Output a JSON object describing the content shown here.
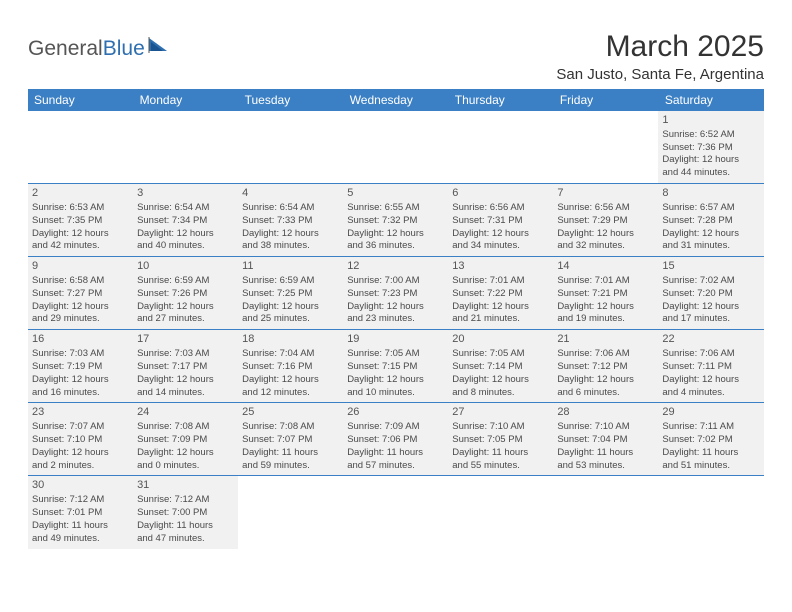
{
  "logo": {
    "text_part1": "General",
    "text_part2": "Blue"
  },
  "title": "March 2025",
  "location": "San Justo, Santa Fe, Argentina",
  "colors": {
    "header_bg": "#3b7fc4",
    "header_text": "#ffffff",
    "cell_filled_bg": "#f1f1f1",
    "border": "#3b7fc4",
    "text": "#4a4a4a"
  },
  "weekdays": [
    "Sunday",
    "Monday",
    "Tuesday",
    "Wednesday",
    "Thursday",
    "Friday",
    "Saturday"
  ],
  "weeks": [
    [
      null,
      null,
      null,
      null,
      null,
      null,
      {
        "day": "1",
        "sunrise": "Sunrise: 6:52 AM",
        "sunset": "Sunset: 7:36 PM",
        "day1": "Daylight: 12 hours",
        "day2": "and 44 minutes."
      }
    ],
    [
      {
        "day": "2",
        "sunrise": "Sunrise: 6:53 AM",
        "sunset": "Sunset: 7:35 PM",
        "day1": "Daylight: 12 hours",
        "day2": "and 42 minutes."
      },
      {
        "day": "3",
        "sunrise": "Sunrise: 6:54 AM",
        "sunset": "Sunset: 7:34 PM",
        "day1": "Daylight: 12 hours",
        "day2": "and 40 minutes."
      },
      {
        "day": "4",
        "sunrise": "Sunrise: 6:54 AM",
        "sunset": "Sunset: 7:33 PM",
        "day1": "Daylight: 12 hours",
        "day2": "and 38 minutes."
      },
      {
        "day": "5",
        "sunrise": "Sunrise: 6:55 AM",
        "sunset": "Sunset: 7:32 PM",
        "day1": "Daylight: 12 hours",
        "day2": "and 36 minutes."
      },
      {
        "day": "6",
        "sunrise": "Sunrise: 6:56 AM",
        "sunset": "Sunset: 7:31 PM",
        "day1": "Daylight: 12 hours",
        "day2": "and 34 minutes."
      },
      {
        "day": "7",
        "sunrise": "Sunrise: 6:56 AM",
        "sunset": "Sunset: 7:29 PM",
        "day1": "Daylight: 12 hours",
        "day2": "and 32 minutes."
      },
      {
        "day": "8",
        "sunrise": "Sunrise: 6:57 AM",
        "sunset": "Sunset: 7:28 PM",
        "day1": "Daylight: 12 hours",
        "day2": "and 31 minutes."
      }
    ],
    [
      {
        "day": "9",
        "sunrise": "Sunrise: 6:58 AM",
        "sunset": "Sunset: 7:27 PM",
        "day1": "Daylight: 12 hours",
        "day2": "and 29 minutes."
      },
      {
        "day": "10",
        "sunrise": "Sunrise: 6:59 AM",
        "sunset": "Sunset: 7:26 PM",
        "day1": "Daylight: 12 hours",
        "day2": "and 27 minutes."
      },
      {
        "day": "11",
        "sunrise": "Sunrise: 6:59 AM",
        "sunset": "Sunset: 7:25 PM",
        "day1": "Daylight: 12 hours",
        "day2": "and 25 minutes."
      },
      {
        "day": "12",
        "sunrise": "Sunrise: 7:00 AM",
        "sunset": "Sunset: 7:23 PM",
        "day1": "Daylight: 12 hours",
        "day2": "and 23 minutes."
      },
      {
        "day": "13",
        "sunrise": "Sunrise: 7:01 AM",
        "sunset": "Sunset: 7:22 PM",
        "day1": "Daylight: 12 hours",
        "day2": "and 21 minutes."
      },
      {
        "day": "14",
        "sunrise": "Sunrise: 7:01 AM",
        "sunset": "Sunset: 7:21 PM",
        "day1": "Daylight: 12 hours",
        "day2": "and 19 minutes."
      },
      {
        "day": "15",
        "sunrise": "Sunrise: 7:02 AM",
        "sunset": "Sunset: 7:20 PM",
        "day1": "Daylight: 12 hours",
        "day2": "and 17 minutes."
      }
    ],
    [
      {
        "day": "16",
        "sunrise": "Sunrise: 7:03 AM",
        "sunset": "Sunset: 7:19 PM",
        "day1": "Daylight: 12 hours",
        "day2": "and 16 minutes."
      },
      {
        "day": "17",
        "sunrise": "Sunrise: 7:03 AM",
        "sunset": "Sunset: 7:17 PM",
        "day1": "Daylight: 12 hours",
        "day2": "and 14 minutes."
      },
      {
        "day": "18",
        "sunrise": "Sunrise: 7:04 AM",
        "sunset": "Sunset: 7:16 PM",
        "day1": "Daylight: 12 hours",
        "day2": "and 12 minutes."
      },
      {
        "day": "19",
        "sunrise": "Sunrise: 7:05 AM",
        "sunset": "Sunset: 7:15 PM",
        "day1": "Daylight: 12 hours",
        "day2": "and 10 minutes."
      },
      {
        "day": "20",
        "sunrise": "Sunrise: 7:05 AM",
        "sunset": "Sunset: 7:14 PM",
        "day1": "Daylight: 12 hours",
        "day2": "and 8 minutes."
      },
      {
        "day": "21",
        "sunrise": "Sunrise: 7:06 AM",
        "sunset": "Sunset: 7:12 PM",
        "day1": "Daylight: 12 hours",
        "day2": "and 6 minutes."
      },
      {
        "day": "22",
        "sunrise": "Sunrise: 7:06 AM",
        "sunset": "Sunset: 7:11 PM",
        "day1": "Daylight: 12 hours",
        "day2": "and 4 minutes."
      }
    ],
    [
      {
        "day": "23",
        "sunrise": "Sunrise: 7:07 AM",
        "sunset": "Sunset: 7:10 PM",
        "day1": "Daylight: 12 hours",
        "day2": "and 2 minutes."
      },
      {
        "day": "24",
        "sunrise": "Sunrise: 7:08 AM",
        "sunset": "Sunset: 7:09 PM",
        "day1": "Daylight: 12 hours",
        "day2": "and 0 minutes."
      },
      {
        "day": "25",
        "sunrise": "Sunrise: 7:08 AM",
        "sunset": "Sunset: 7:07 PM",
        "day1": "Daylight: 11 hours",
        "day2": "and 59 minutes."
      },
      {
        "day": "26",
        "sunrise": "Sunrise: 7:09 AM",
        "sunset": "Sunset: 7:06 PM",
        "day1": "Daylight: 11 hours",
        "day2": "and 57 minutes."
      },
      {
        "day": "27",
        "sunrise": "Sunrise: 7:10 AM",
        "sunset": "Sunset: 7:05 PM",
        "day1": "Daylight: 11 hours",
        "day2": "and 55 minutes."
      },
      {
        "day": "28",
        "sunrise": "Sunrise: 7:10 AM",
        "sunset": "Sunset: 7:04 PM",
        "day1": "Daylight: 11 hours",
        "day2": "and 53 minutes."
      },
      {
        "day": "29",
        "sunrise": "Sunrise: 7:11 AM",
        "sunset": "Sunset: 7:02 PM",
        "day1": "Daylight: 11 hours",
        "day2": "and 51 minutes."
      }
    ],
    [
      {
        "day": "30",
        "sunrise": "Sunrise: 7:12 AM",
        "sunset": "Sunset: 7:01 PM",
        "day1": "Daylight: 11 hours",
        "day2": "and 49 minutes."
      },
      {
        "day": "31",
        "sunrise": "Sunrise: 7:12 AM",
        "sunset": "Sunset: 7:00 PM",
        "day1": "Daylight: 11 hours",
        "day2": "and 47 minutes."
      },
      null,
      null,
      null,
      null,
      null
    ]
  ]
}
